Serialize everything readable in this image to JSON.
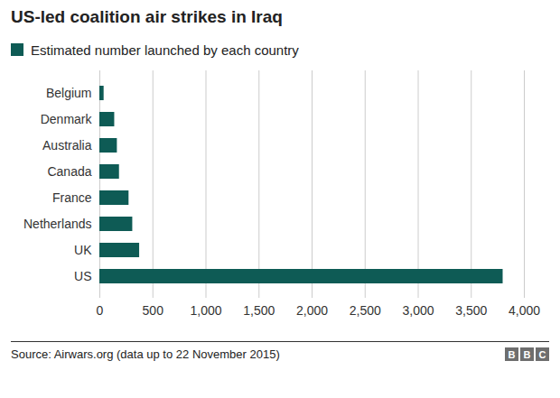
{
  "chart_data": {
    "type": "bar",
    "orientation": "horizontal",
    "title": "US-led coalition air strikes in Iraq",
    "categories": [
      "Belgium",
      "Denmark",
      "Australia",
      "Canada",
      "France",
      "Netherlands",
      "UK",
      "US"
    ],
    "series": [
      {
        "name": "Estimated number launched by each country",
        "color": "#0e5b55",
        "values": [
          40,
          140,
          165,
          185,
          275,
          310,
          375,
          3800
        ]
      }
    ],
    "legend": "top-left",
    "xlim": [
      0,
      4000
    ],
    "xticks": [
      0,
      500,
      {
        "value": 1000,
        "label": "1,000"
      },
      {
        "value": 1500,
        "label": "1,500"
      },
      {
        "value": 2000,
        "label": "2,000"
      },
      {
        "value": 2500,
        "label": "2,500"
      },
      {
        "value": 3000,
        "label": "3,000"
      },
      {
        "value": 3500,
        "label": "3,500"
      },
      {
        "value": 4000,
        "label": "4,000"
      }
    ],
    "grid": true,
    "source": "Source: Airwars.org (data up to 22 November 2015)",
    "logo": "BBC"
  }
}
